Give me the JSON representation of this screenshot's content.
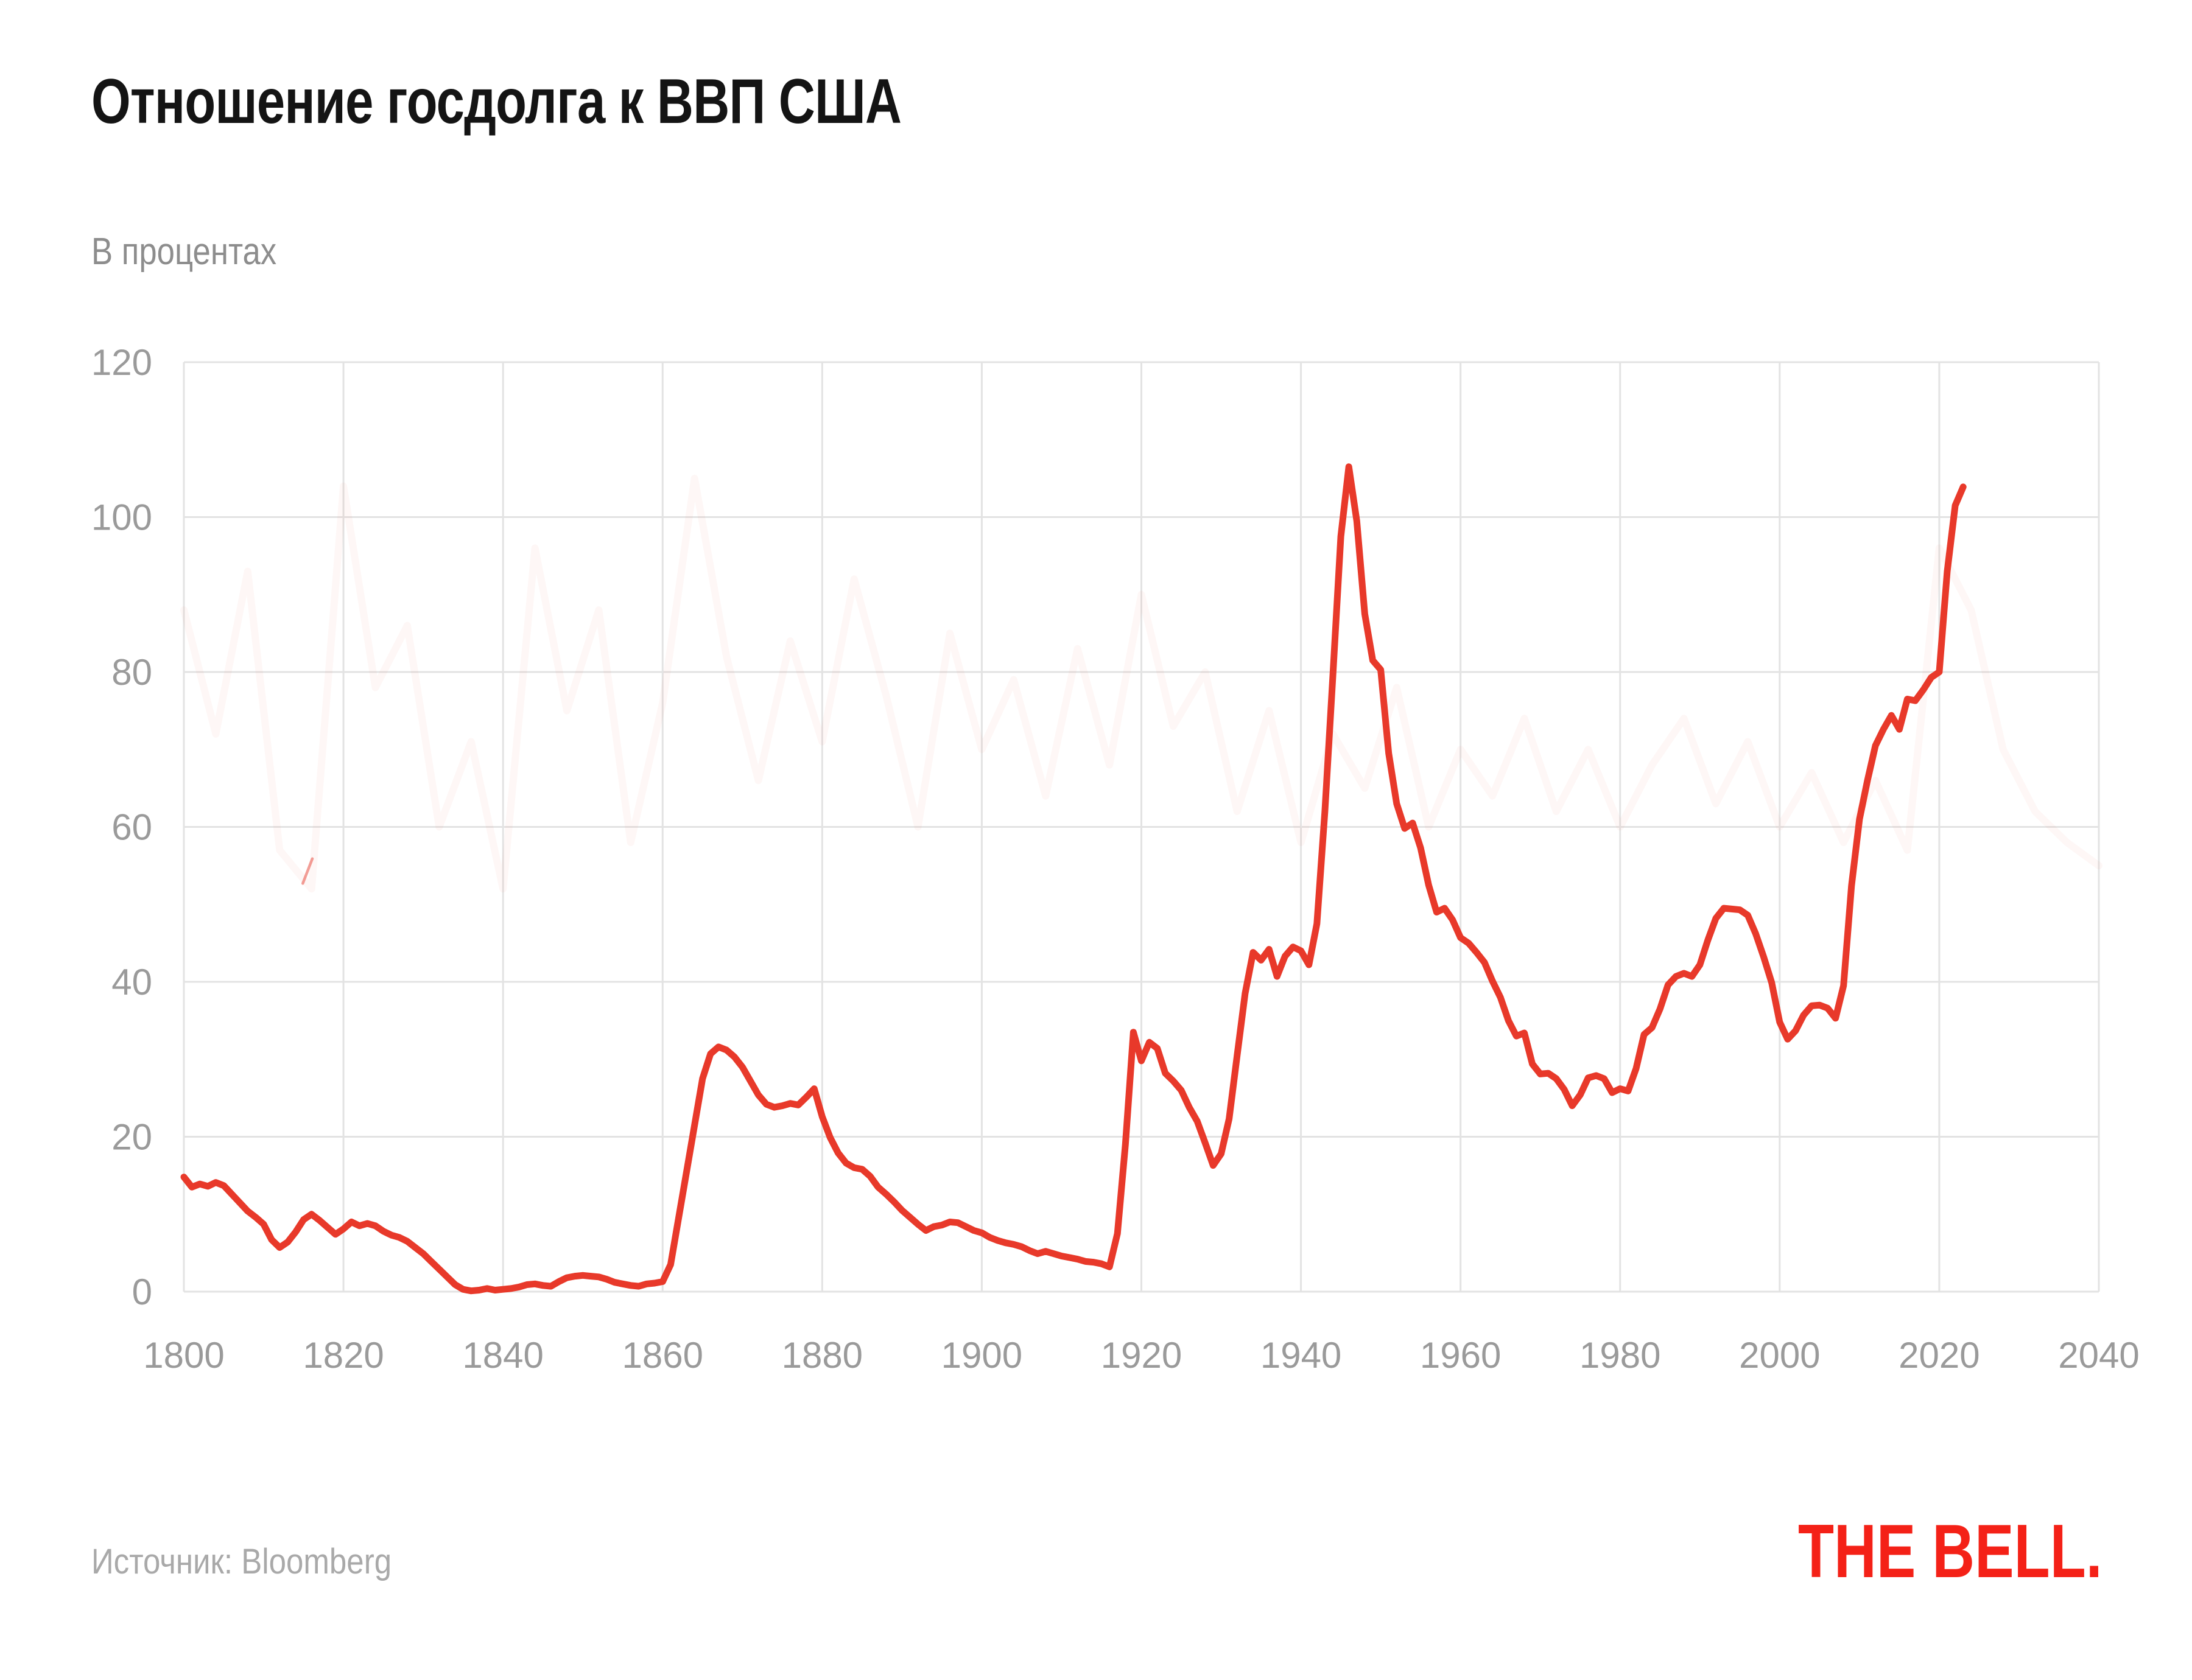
{
  "header": {
    "title": "Отношение госдолга к ВВП США",
    "subtitle": "В процентах"
  },
  "footer": {
    "source": "Источник: Bloomberg",
    "logo": "THE BELL."
  },
  "colors": {
    "title_text": "#141414",
    "subtitle_text": "#8d8d8d",
    "source_text": "#a9a9a9",
    "logo_red": "#f42117",
    "line_red": "#e8392a",
    "grid": "#e3e3e3",
    "axis_text": "#9a9a9a",
    "ghost_line": "rgba(238,108,82,0.055)",
    "artifact_red": "rgba(229,62,48,0.5)"
  },
  "chart_data": {
    "type": "line",
    "title": "Отношение госдолга к ВВП США",
    "xlabel": "",
    "ylabel": "В процентах",
    "xlim": [
      1800,
      2040
    ],
    "ylim": [
      0,
      120
    ],
    "x_ticks": [
      1800,
      1820,
      1840,
      1860,
      1880,
      1900,
      1920,
      1940,
      1960,
      1980,
      2000,
      2020,
      2040
    ],
    "y_ticks": [
      0,
      20,
      40,
      60,
      80,
      100,
      120
    ],
    "grid": true,
    "legend": false,
    "series": [
      {
        "name": "debt-to-gdp",
        "x_start": 1800,
        "x_step": 1,
        "values": [
          14.8,
          13.5,
          13.9,
          13.6,
          14.1,
          13.7,
          12.6,
          11.5,
          10.4,
          9.6,
          8.7,
          6.7,
          5.7,
          6.4,
          7.7,
          9.3,
          10.0,
          9.2,
          8.3,
          7.4,
          8.1,
          9.0,
          8.5,
          8.8,
          8.5,
          7.8,
          7.3,
          7.0,
          6.5,
          5.7,
          4.9,
          3.9,
          2.9,
          1.9,
          0.9,
          0.3,
          0.1,
          0.2,
          0.4,
          0.2,
          0.3,
          0.4,
          0.6,
          0.9,
          1.0,
          0.8,
          0.7,
          1.3,
          1.8,
          2.0,
          2.1,
          2.0,
          1.9,
          1.6,
          1.2,
          1.0,
          0.8,
          0.7,
          1.0,
          1.1,
          1.3,
          3.5,
          9.5,
          15.5,
          21.5,
          27.5,
          30.7,
          31.6,
          31.2,
          30.3,
          29.0,
          27.2,
          25.4,
          24.2,
          23.8,
          24.0,
          24.3,
          24.1,
          25.1,
          26.2,
          22.6,
          19.9,
          17.9,
          16.6,
          16.0,
          15.8,
          14.9,
          13.5,
          12.6,
          11.6,
          10.5,
          9.6,
          8.7,
          7.9,
          8.4,
          8.6,
          9.0,
          8.9,
          8.4,
          7.9,
          7.6,
          7.0,
          6.6,
          6.3,
          6.1,
          5.8,
          5.3,
          4.9,
          5.2,
          4.9,
          4.6,
          4.4,
          4.2,
          3.9,
          3.8,
          3.6,
          3.2,
          7.5,
          19.0,
          33.5,
          29.8,
          32.2,
          31.4,
          28.2,
          27.2,
          26.0,
          23.8,
          22.0,
          19.2,
          16.3,
          17.8,
          22.3,
          30.5,
          38.5,
          43.8,
          42.8,
          44.2,
          40.7,
          43.3,
          44.5,
          44.0,
          42.2,
          47.5,
          62.0,
          79.5,
          97.5,
          106.5,
          99.5,
          87.5,
          81.5,
          80.3,
          69.5,
          63.0,
          59.8,
          60.5,
          57.3,
          52.5,
          49.0,
          49.5,
          48.0,
          45.7,
          45.0,
          43.8,
          42.5,
          40.1,
          38.0,
          35.0,
          33.0,
          33.4,
          29.4,
          28.1,
          28.2,
          27.5,
          26.1,
          24.0,
          25.4,
          27.6,
          27.9,
          27.5,
          25.7,
          26.2,
          25.9,
          28.8,
          33.2,
          34.1,
          36.5,
          39.6,
          40.7,
          41.1,
          40.7,
          42.2,
          45.4,
          48.2,
          49.5,
          49.4,
          49.3,
          48.6,
          46.2,
          43.2,
          39.9,
          34.8,
          32.6,
          33.7,
          35.7,
          36.9,
          37.0,
          36.6,
          35.3,
          39.5,
          52.4,
          61.0,
          66.0,
          70.5,
          72.6,
          74.4,
          72.6,
          76.5,
          76.3,
          77.7,
          79.3,
          80.0,
          93.0,
          101.5,
          103.9
        ]
      }
    ],
    "ghost_watermark": {
      "name": "faint-background-trace",
      "x_start": 1800,
      "x_step": 4,
      "values": [
        88,
        72,
        93,
        57,
        52,
        104,
        78,
        86,
        60,
        71,
        52,
        96,
        75,
        88,
        58,
        76,
        105,
        82,
        66,
        84,
        71,
        92,
        77,
        60,
        85,
        70,
        79,
        64,
        83,
        68,
        90,
        73,
        80,
        62,
        75,
        58,
        72,
        65,
        78,
        60,
        70,
        64,
        74,
        62,
        70,
        60,
        68,
        74,
        63,
        71,
        60,
        67,
        58,
        66,
        57,
        96,
        88,
        70,
        62,
        58,
        55
      ]
    },
    "artifact_mark": {
      "x_from": 1814.9,
      "y_from": 52.7,
      "x_to": 1816.1,
      "y_to": 55.9
    }
  }
}
